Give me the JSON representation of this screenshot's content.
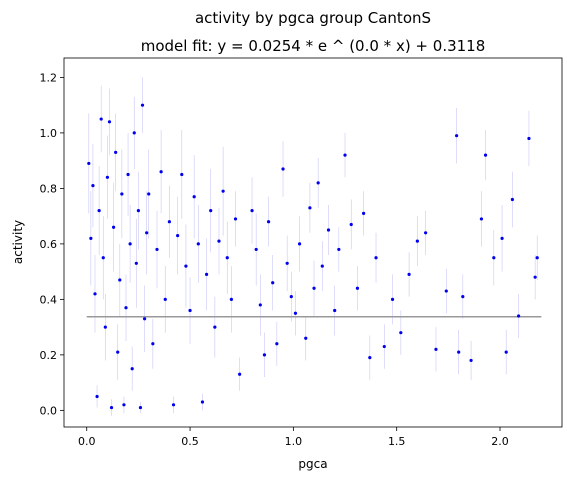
{
  "chart_data": {
    "type": "scatter",
    "title": "activity by pgca group CantonS",
    "subtitle": "model fit: y = 0.0254 * e ^ (0.0 * x) + 0.3118",
    "xlabel": "pgca",
    "ylabel": "activity",
    "xlim": [
      -0.11,
      2.3
    ],
    "ylim": [
      -0.06,
      1.27
    ],
    "xticks": [
      0.0,
      0.5,
      1.0,
      1.5,
      2.0
    ],
    "xtick_labels": [
      "0.0",
      "0.5",
      "1.0",
      "1.5",
      "2.0"
    ],
    "yticks": [
      0.0,
      0.2,
      0.4,
      0.6,
      0.8,
      1.0,
      1.2
    ],
    "ytick_labels": [
      "0.0",
      "0.2",
      "0.4",
      "0.6",
      "0.8",
      "1.0",
      "1.2"
    ],
    "grid": false,
    "legend": "none",
    "colors": {
      "points": "#0000ee",
      "errorbars": "#9999ee",
      "fit": "#999999"
    },
    "fit": {
      "a": 0.0254,
      "b": 0.0,
      "c": 0.3118,
      "x_range": [
        0.0,
        2.2
      ]
    },
    "series": [
      {
        "points": [
          [
            0.01,
            0.89,
            0.18
          ],
          [
            0.02,
            0.62,
            0.17
          ],
          [
            0.03,
            0.81,
            0.15
          ],
          [
            0.04,
            0.42,
            0.14
          ],
          [
            0.05,
            0.05,
            0.04
          ],
          [
            0.06,
            0.72,
            0.16
          ],
          [
            0.07,
            1.05,
            0.12
          ],
          [
            0.08,
            0.55,
            0.15
          ],
          [
            0.09,
            0.3,
            0.12
          ],
          [
            0.1,
            0.84,
            0.15
          ],
          [
            0.11,
            1.04,
            0.12
          ],
          [
            0.12,
            0.01,
            0.03
          ],
          [
            0.13,
            0.66,
            0.16
          ],
          [
            0.14,
            0.93,
            0.14
          ],
          [
            0.15,
            0.21,
            0.1
          ],
          [
            0.16,
            0.47,
            0.13
          ],
          [
            0.17,
            0.78,
            0.16
          ],
          [
            0.18,
            0.02,
            0.03
          ],
          [
            0.19,
            0.37,
            0.12
          ],
          [
            0.2,
            0.85,
            0.15
          ],
          [
            0.21,
            0.6,
            0.14
          ],
          [
            0.22,
            0.15,
            0.08
          ],
          [
            0.23,
            1.0,
            0.13
          ],
          [
            0.24,
            0.53,
            0.16
          ],
          [
            0.25,
            0.72,
            0.14
          ],
          [
            0.26,
            0.01,
            0.02
          ],
          [
            0.27,
            1.1,
            0.1
          ],
          [
            0.28,
            0.33,
            0.12
          ],
          [
            0.29,
            0.64,
            0.15
          ],
          [
            0.3,
            0.78,
            0.16
          ],
          [
            0.32,
            0.24,
            0.09
          ],
          [
            0.34,
            0.58,
            0.14
          ],
          [
            0.36,
            0.86,
            0.15
          ],
          [
            0.38,
            0.4,
            0.12
          ],
          [
            0.4,
            0.68,
            0.13
          ],
          [
            0.42,
            0.02,
            0.03
          ],
          [
            0.44,
            0.63,
            0.14
          ],
          [
            0.46,
            0.85,
            0.16
          ],
          [
            0.48,
            0.52,
            0.15
          ],
          [
            0.5,
            0.36,
            0.12
          ],
          [
            0.52,
            0.77,
            0.15
          ],
          [
            0.54,
            0.6,
            0.14
          ],
          [
            0.56,
            0.03,
            0.03
          ],
          [
            0.58,
            0.49,
            0.13
          ],
          [
            0.6,
            0.72,
            0.15
          ],
          [
            0.62,
            0.3,
            0.11
          ],
          [
            0.64,
            0.61,
            0.12
          ],
          [
            0.66,
            0.79,
            0.16
          ],
          [
            0.68,
            0.55,
            0.13
          ],
          [
            0.7,
            0.4,
            0.12
          ],
          [
            0.72,
            0.69,
            0.1
          ],
          [
            0.74,
            0.13,
            0.06
          ],
          [
            0.8,
            0.72,
            0.12
          ],
          [
            0.82,
            0.58,
            0.13
          ],
          [
            0.84,
            0.38,
            0.11
          ],
          [
            0.86,
            0.2,
            0.08
          ],
          [
            0.88,
            0.68,
            0.09
          ],
          [
            0.9,
            0.46,
            0.1
          ],
          [
            0.92,
            0.24,
            0.08
          ],
          [
            0.95,
            0.87,
            0.1
          ],
          [
            0.97,
            0.53,
            0.1
          ],
          [
            0.99,
            0.41,
            0.09
          ],
          [
            1.01,
            0.35,
            0.08
          ],
          [
            1.03,
            0.6,
            0.1
          ],
          [
            1.06,
            0.26,
            0.08
          ],
          [
            1.08,
            0.73,
            0.09
          ],
          [
            1.1,
            0.44,
            0.1
          ],
          [
            1.12,
            0.82,
            0.09
          ],
          [
            1.14,
            0.52,
            0.09
          ],
          [
            1.17,
            0.65,
            0.09
          ],
          [
            1.2,
            0.36,
            0.09
          ],
          [
            1.22,
            0.58,
            0.08
          ],
          [
            1.25,
            0.92,
            0.08
          ],
          [
            1.28,
            0.67,
            0.09
          ],
          [
            1.31,
            0.44,
            0.08
          ],
          [
            1.34,
            0.71,
            0.08
          ],
          [
            1.37,
            0.19,
            0.08
          ],
          [
            1.4,
            0.55,
            0.09
          ],
          [
            1.44,
            0.23,
            0.08
          ],
          [
            1.48,
            0.4,
            0.09
          ],
          [
            1.52,
            0.28,
            0.08
          ],
          [
            1.56,
            0.49,
            0.08
          ],
          [
            1.6,
            0.61,
            0.09
          ],
          [
            1.64,
            0.64,
            0.08
          ],
          [
            1.69,
            0.22,
            0.08
          ],
          [
            1.74,
            0.43,
            0.08
          ],
          [
            1.79,
            0.99,
            0.1
          ],
          [
            1.8,
            0.21,
            0.08
          ],
          [
            1.82,
            0.41,
            0.08
          ],
          [
            1.86,
            0.18,
            0.07
          ],
          [
            1.91,
            0.69,
            0.1
          ],
          [
            1.93,
            0.92,
            0.09
          ],
          [
            1.97,
            0.55,
            0.1
          ],
          [
            2.01,
            0.62,
            0.12
          ],
          [
            2.03,
            0.21,
            0.08
          ],
          [
            2.06,
            0.76,
            0.1
          ],
          [
            2.09,
            0.34,
            0.08
          ],
          [
            2.14,
            0.98,
            0.1
          ],
          [
            2.17,
            0.48,
            0.08
          ],
          [
            2.18,
            0.55,
            0.08
          ]
        ]
      }
    ]
  }
}
